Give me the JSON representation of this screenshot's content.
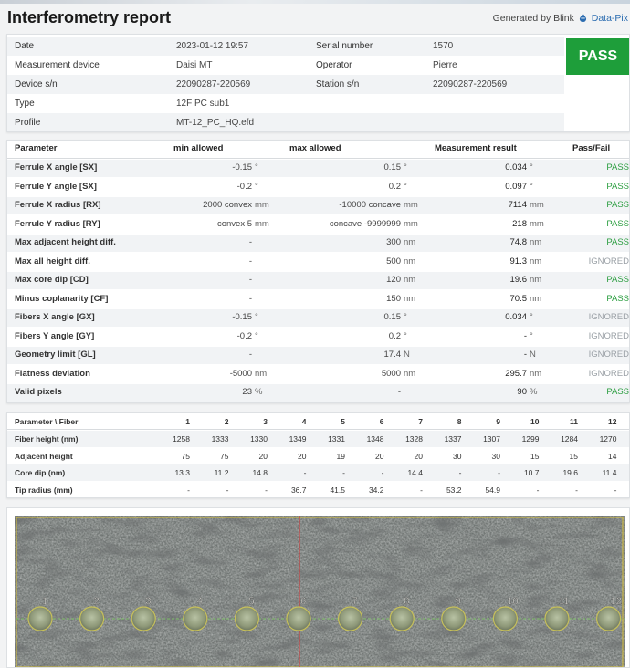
{
  "report": {
    "title": "Interferometry report",
    "generated_prefix": "Generated by Blink",
    "brand": "Data-Pix",
    "icon": "blink-drop-icon"
  },
  "info": {
    "rows": [
      {
        "label": "Date",
        "value": "2023-01-12 19:57",
        "label2": "Serial number",
        "value2": "1570"
      },
      {
        "label": "Measurement device",
        "value": "Daisi MT",
        "label2": "Operator",
        "value2": "Pierre"
      },
      {
        "label": "Device s/n",
        "value": "22090287-220569",
        "label2": "Station s/n",
        "value2": "22090287-220569"
      },
      {
        "label": "Type",
        "value": "12F PC sub1",
        "label2": "",
        "value2": ""
      },
      {
        "label": "Profile",
        "value": "MT-12_PC_HQ.efd",
        "label2": "",
        "value2": ""
      }
    ],
    "status": "PASS",
    "status_color": "#1e9e3a"
  },
  "params": {
    "headers": {
      "param": "Parameter",
      "min": "min allowed",
      "max": "max allowed",
      "result": "Measurement result",
      "passfail": "Pass/Fail"
    },
    "rows": [
      {
        "name": "Ferrule X angle [SX]",
        "min": "-0.15",
        "min_unit": "°",
        "max": "0.15",
        "max_unit": "°",
        "result": "0.034",
        "result_unit": "°",
        "status": "PASS"
      },
      {
        "name": "Ferrule Y angle [SX]",
        "min": "-0.2",
        "min_unit": "°",
        "max": "0.2",
        "max_unit": "°",
        "result": "0.097",
        "result_unit": "°",
        "status": "PASS"
      },
      {
        "name": "Ferrule X radius [RX]",
        "min": "2000 convex",
        "min_unit": "mm",
        "max": "-10000 concave",
        "max_unit": "mm",
        "result": "7114",
        "result_unit": "mm",
        "status": "PASS"
      },
      {
        "name": "Ferrule Y radius [RY]",
        "min": "convex 5",
        "min_unit": "mm",
        "max": "concave -9999999",
        "max_unit": "mm",
        "result": "218",
        "result_unit": "mm",
        "status": "PASS"
      },
      {
        "name": "Max adjacent height diff.",
        "min": "-",
        "min_unit": "",
        "max": "300",
        "max_unit": "nm",
        "result": "74.8",
        "result_unit": "nm",
        "status": "PASS"
      },
      {
        "name": "Max all height diff.",
        "min": "-",
        "min_unit": "",
        "max": "500",
        "max_unit": "nm",
        "result": "91.3",
        "result_unit": "nm",
        "status": "IGNORED"
      },
      {
        "name": "Max core dip [CD]",
        "min": "-",
        "min_unit": "",
        "max": "120",
        "max_unit": "nm",
        "result": "19.6",
        "result_unit": "nm",
        "status": "PASS"
      },
      {
        "name": "Minus coplanarity [CF]",
        "min": "-",
        "min_unit": "",
        "max": "150",
        "max_unit": "nm",
        "result": "70.5",
        "result_unit": "nm",
        "status": "PASS"
      },
      {
        "name": "Fibers X angle [GX]",
        "min": "-0.15",
        "min_unit": "°",
        "max": "0.15",
        "max_unit": "°",
        "result": "0.034",
        "result_unit": "°",
        "status": "IGNORED"
      },
      {
        "name": "Fibers Y angle [GY]",
        "min": "-0.2",
        "min_unit": "°",
        "max": "0.2",
        "max_unit": "°",
        "result": "-",
        "result_unit": "°",
        "status": "IGNORED"
      },
      {
        "name": "Geometry limit [GL]",
        "min": "-",
        "min_unit": "",
        "max": "17.4",
        "max_unit": "N",
        "result": "-",
        "result_unit": "N",
        "status": "IGNORED"
      },
      {
        "name": "Flatness deviation",
        "min": "-5000",
        "min_unit": "nm",
        "max": "5000",
        "max_unit": "nm",
        "result": "295.7",
        "result_unit": "nm",
        "status": "IGNORED"
      },
      {
        "name": "Valid pixels",
        "min": "23",
        "min_unit": "%",
        "max": "-",
        "max_unit": "",
        "result": "90",
        "result_unit": "%",
        "status": "PASS"
      }
    ],
    "pass_color": "#2a9d3f",
    "ignored_color": "#9aa0a6"
  },
  "fibers": {
    "header_label": "Parameter \\ Fiber",
    "columns": [
      "1",
      "2",
      "3",
      "4",
      "5",
      "6",
      "7",
      "8",
      "9",
      "10",
      "11",
      "12"
    ],
    "rows": [
      {
        "label": "Fiber height (nm)",
        "values": [
          "1258",
          "1333",
          "1330",
          "1349",
          "1331",
          "1348",
          "1328",
          "1337",
          "1307",
          "1299",
          "1284",
          "1270"
        ]
      },
      {
        "label": "Adjacent height",
        "values": [
          "75",
          "75",
          "20",
          "20",
          "19",
          "20",
          "20",
          "30",
          "30",
          "15",
          "15",
          "14"
        ]
      },
      {
        "label": "Core dip (nm)",
        "values": [
          "13.3",
          "11.2",
          "14.8",
          "-",
          "-",
          "-",
          "14.4",
          "-",
          "-",
          "10.7",
          "19.6",
          "11.4"
        ]
      },
      {
        "label": "Tip radius (mm)",
        "values": [
          "-",
          "-",
          "-",
          "36.7",
          "41.5",
          "34.2",
          "-",
          "53.2",
          "54.9",
          "-",
          "-",
          "-"
        ]
      }
    ]
  },
  "image": {
    "fiber_labels": [
      "1",
      "2",
      "3",
      "4",
      "5",
      "6",
      "7",
      "8",
      "9",
      "10",
      "11",
      "12"
    ]
  }
}
